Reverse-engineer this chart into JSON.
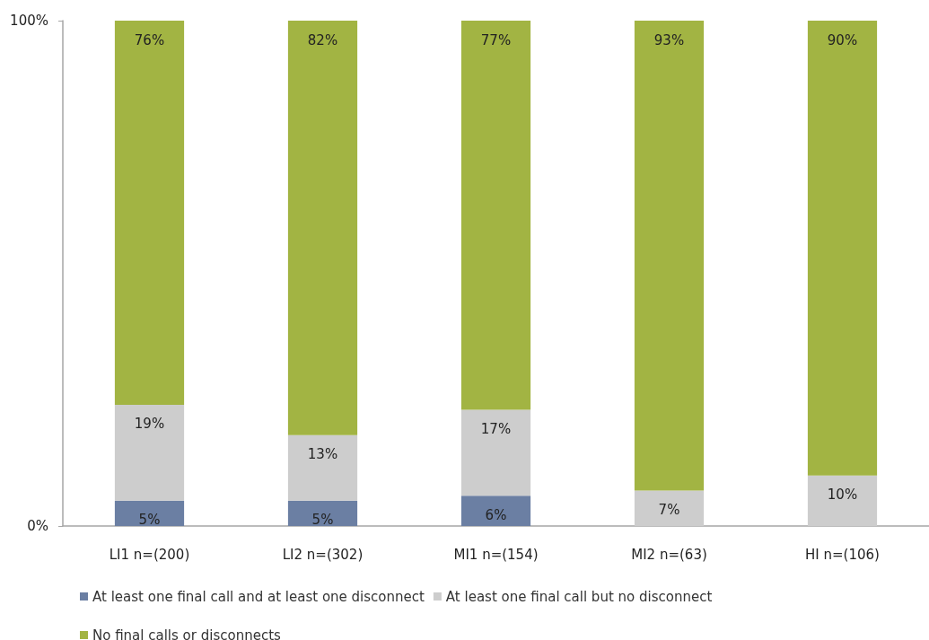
{
  "chart_data": {
    "type": "bar",
    "stacked": true,
    "categories": [
      "LI1 n=(200)",
      "LI2 n=(302)",
      "MI1 n=(154)",
      "MI2 n=(63)",
      "HI n=(106)"
    ],
    "series": [
      {
        "name": "At least one final call and at least one disconnect",
        "color": "#6b7fa3",
        "values": [
          5,
          5,
          6,
          null,
          null
        ],
        "value_labels": [
          "5%",
          "5%",
          "6%",
          null,
          null
        ]
      },
      {
        "name": "At least one final call but no disconnect",
        "color": "#cdcdcd",
        "values": [
          19,
          13,
          17,
          7,
          10
        ],
        "value_labels": [
          "19%",
          "13%",
          "17%",
          "7%",
          "10%"
        ]
      },
      {
        "name": "No final calls or disconnects",
        "color": "#a2b443",
        "values": [
          76,
          82,
          77,
          93,
          90
        ],
        "value_labels": [
          "76%",
          "82%",
          "77%",
          "93%",
          "90%"
        ]
      }
    ],
    "ylim": [
      0,
      100
    ],
    "yticks": [
      {
        "value": 0,
        "label": "0%"
      },
      {
        "value": 100,
        "label": "100%"
      }
    ],
    "grid": false,
    "legend": "bottom"
  }
}
